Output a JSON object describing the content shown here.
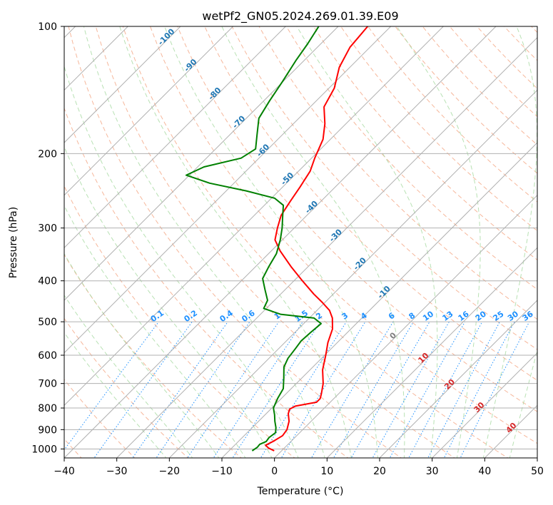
{
  "chart_data": {
    "type": "line",
    "subtype": "skew-T log-P diagram",
    "title": "wetPf2_GN05.2024.269.01.39.E09",
    "xlabel": "Temperature (°C)",
    "ylabel": "Pressure (hPa)",
    "xlim": [
      -40,
      50
    ],
    "ylim": [
      1050,
      100
    ],
    "y_scale": "log",
    "grid": true,
    "x_ticks": [
      -40,
      -30,
      -20,
      -10,
      0,
      10,
      20,
      30,
      40,
      50
    ],
    "x_tick_labels": [
      "−40",
      "−30",
      "−20",
      "−10",
      "0",
      "10",
      "20",
      "30",
      "40",
      "50"
    ],
    "y_ticks": [
      100,
      200,
      300,
      400,
      500,
      600,
      700,
      800,
      900,
      1000
    ],
    "y_tick_labels": [
      "100",
      "200",
      "300",
      "400",
      "500",
      "600",
      "700",
      "800",
      "900",
      "1000"
    ],
    "colors": {
      "temperature": "#ff0000",
      "dewpoint": "#008000",
      "isotherm": "#b0b0b0",
      "dry_adiabat": "#f4a582",
      "moist_adiabat": "#a6d9a0",
      "mixing_ratio": "#1e90ff",
      "label_blue": "#1f77b4",
      "label_red": "#d62728",
      "label_gray": "#7f7f7f"
    },
    "series": [
      {
        "name": "",
        "color": "#ff0000",
        "points": [
          [
            1010,
            -1.4
          ],
          [
            995,
            -3.0
          ],
          [
            980,
            -4.1
          ],
          [
            960,
            -3.4
          ],
          [
            930,
            -2.7
          ],
          [
            900,
            -3.0
          ],
          [
            860,
            -4.2
          ],
          [
            825,
            -5.8
          ],
          [
            805,
            -6.4
          ],
          [
            792,
            -5.9
          ],
          [
            775,
            -2.6
          ],
          [
            760,
            -2.6
          ],
          [
            740,
            -3.3
          ],
          [
            700,
            -4.9
          ],
          [
            650,
            -7.6
          ],
          [
            600,
            -9.8
          ],
          [
            560,
            -11.8
          ],
          [
            520,
            -13.5
          ],
          [
            490,
            -15.6
          ],
          [
            470,
            -17.6
          ],
          [
            450,
            -20.5
          ],
          [
            430,
            -23.7
          ],
          [
            400,
            -28.4
          ],
          [
            370,
            -33.3
          ],
          [
            340,
            -38.3
          ],
          [
            320,
            -41.4
          ],
          [
            300,
            -43.2
          ],
          [
            280,
            -44.9
          ],
          [
            260,
            -45.8
          ],
          [
            240,
            -46.7
          ],
          [
            220,
            -47.8
          ],
          [
            205,
            -49.4
          ],
          [
            185,
            -51.4
          ],
          [
            170,
            -54.0
          ],
          [
            155,
            -57.4
          ],
          [
            140,
            -59.0
          ],
          [
            125,
            -62.0
          ],
          [
            112,
            -63.8
          ],
          [
            100,
            -64.4
          ]
        ]
      },
      {
        "name": "",
        "color": "#008000",
        "points": [
          [
            1010,
            -5.6
          ],
          [
            990,
            -5.3
          ],
          [
            975,
            -5.4
          ],
          [
            960,
            -4.7
          ],
          [
            940,
            -4.9
          ],
          [
            915,
            -4.6
          ],
          [
            890,
            -5.5
          ],
          [
            860,
            -6.9
          ],
          [
            830,
            -8.2
          ],
          [
            800,
            -9.7
          ],
          [
            760,
            -10.7
          ],
          [
            720,
            -11.5
          ],
          [
            680,
            -13.4
          ],
          [
            640,
            -15.5
          ],
          [
            610,
            -16.4
          ],
          [
            580,
            -16.8
          ],
          [
            555,
            -17.2
          ],
          [
            530,
            -17.0
          ],
          [
            505,
            -16.7
          ],
          [
            490,
            -19.1
          ],
          [
            480,
            -26.2
          ],
          [
            465,
            -30.5
          ],
          [
            445,
            -31.3
          ],
          [
            420,
            -33.8
          ],
          [
            395,
            -36.4
          ],
          [
            370,
            -37.5
          ],
          [
            345,
            -38.5
          ],
          [
            320,
            -40.4
          ],
          [
            300,
            -42.3
          ],
          [
            280,
            -44.6
          ],
          [
            265,
            -46.4
          ],
          [
            255,
            -49.4
          ],
          [
            245,
            -56.2
          ],
          [
            235,
            -64.6
          ],
          [
            225,
            -70.6
          ],
          [
            215,
            -68.8
          ],
          [
            205,
            -63.4
          ],
          [
            195,
            -62.4
          ],
          [
            180,
            -64.9
          ],
          [
            165,
            -67.6
          ],
          [
            150,
            -68.9
          ],
          [
            135,
            -70.1
          ],
          [
            120,
            -71.6
          ],
          [
            110,
            -72.5
          ],
          [
            100,
            -73.7
          ]
        ]
      }
    ],
    "mixing_ratio_labels": [
      "0.1",
      "0.2",
      "0.4",
      "0.6",
      "1",
      "1.5",
      "2",
      "3",
      "4",
      "6",
      "8",
      "10",
      "13",
      "16",
      "20",
      "25",
      "30",
      "36"
    ],
    "mixing_ratio_values": [
      0.1,
      0.2,
      0.4,
      0.6,
      1,
      1.5,
      2,
      3,
      4,
      6,
      8,
      10,
      13,
      16,
      20,
      25,
      30,
      36
    ],
    "adiabat_labels_blue": [
      "-100",
      "-90",
      "-80",
      "-70",
      "-60",
      "-50",
      "-40",
      "-30",
      "-20",
      "-10"
    ],
    "adiabat_labels_red": [
      "10",
      "20",
      "30",
      "40"
    ],
    "adiabat_label_gray": "0"
  }
}
